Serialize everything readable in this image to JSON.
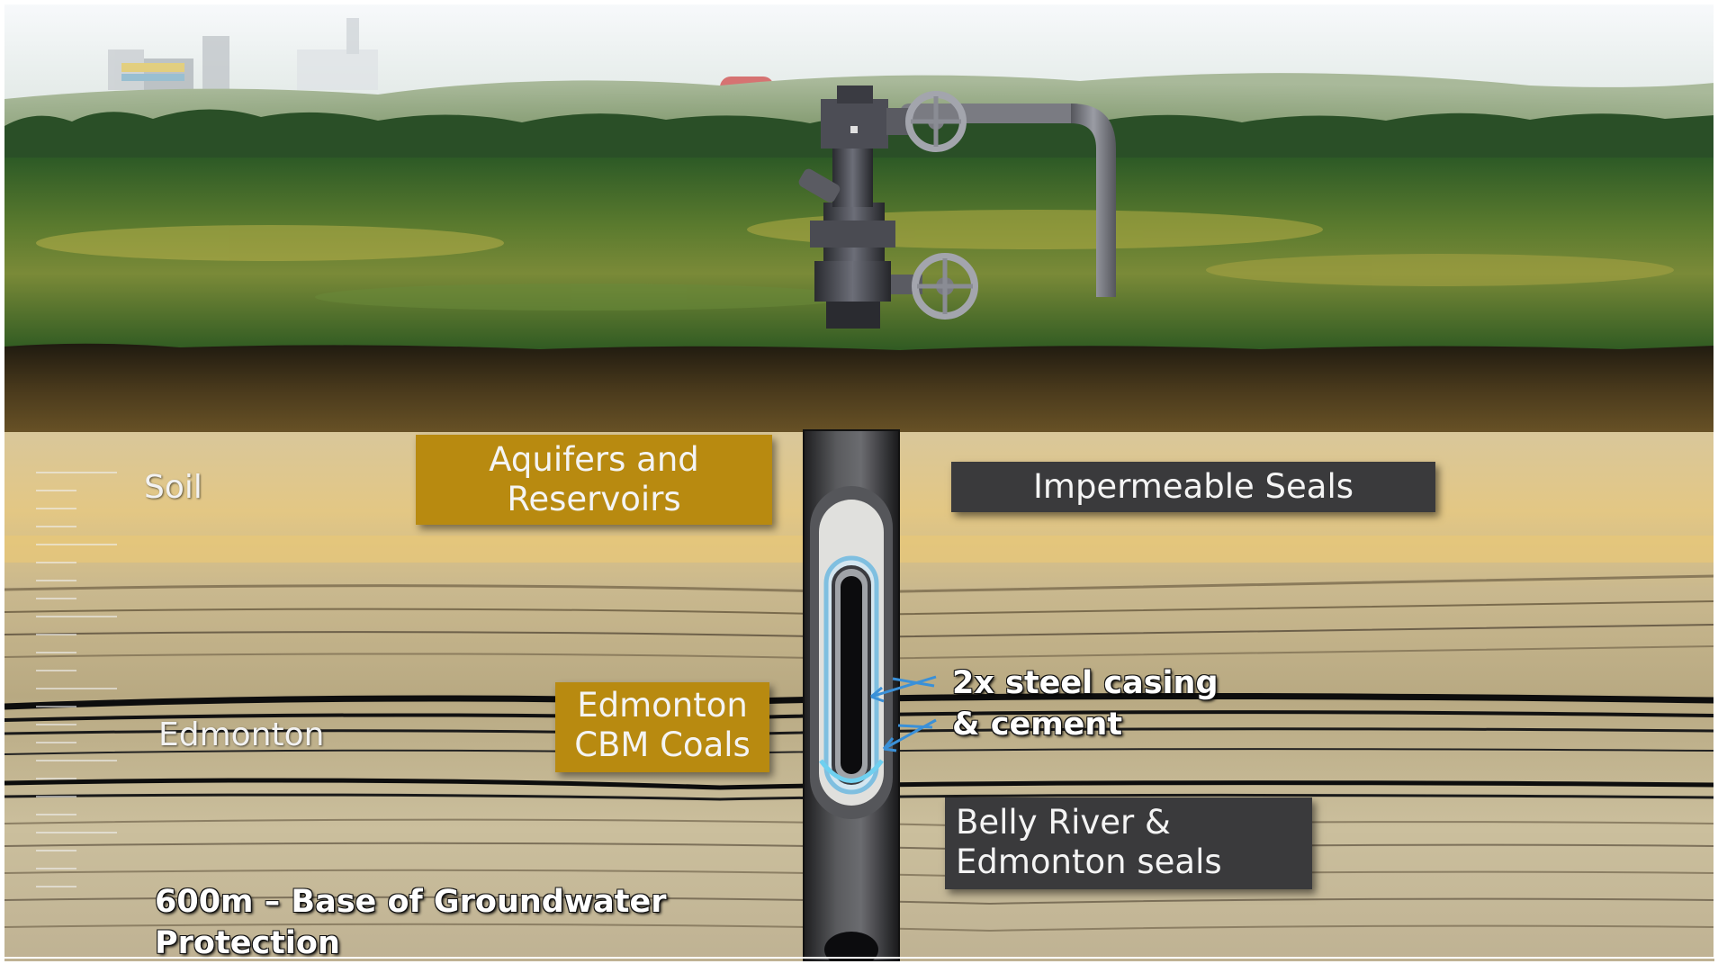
{
  "labels": {
    "aquifers": {
      "line1": "Aquifers and",
      "line2": "Reservoirs"
    },
    "impermeable_seals": "Impermeable Seals",
    "soil": "Soil",
    "cbm_coals": {
      "line1": "Edmonton",
      "line2": "CBM Coals"
    },
    "edmonton": "Edmonton",
    "casing": {
      "line1": "2x steel casing",
      "line2": "& cement"
    },
    "belly_river": {
      "line1": "Belly River &",
      "line2": "Edmonton seals"
    },
    "groundwater": {
      "line1": "600m – Base of Groundwater",
      "line2": "Protection"
    }
  },
  "colors": {
    "label_gold": "#b88a10",
    "label_dark": "#3a3a3c",
    "casing_arrow": "#3a90d8"
  }
}
